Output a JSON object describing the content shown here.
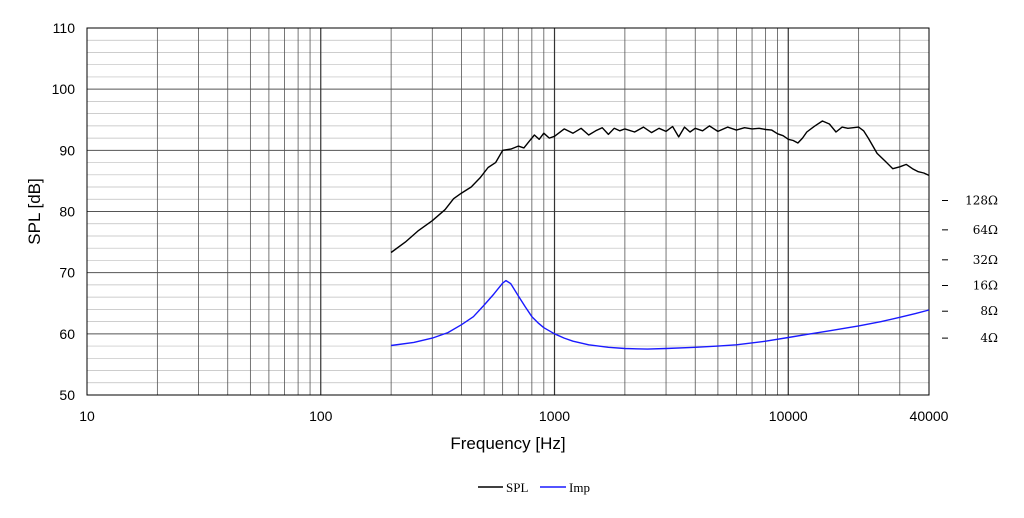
{
  "chart_data": {
    "type": "line",
    "title": "",
    "xlabel": "Frequency [Hz]",
    "ylabel": "SPL [dB]",
    "x_scale": "log",
    "xlim": [
      10,
      40000
    ],
    "ylim": [
      50,
      110
    ],
    "grid": true,
    "x_ticks": [
      {
        "value": 10,
        "label": "10"
      },
      {
        "value": 100,
        "label": "100"
      },
      {
        "value": 1000,
        "label": "1000"
      },
      {
        "value": 10000,
        "label": "10000"
      },
      {
        "value": 40000,
        "label": "40000"
      }
    ],
    "y_ticks": [
      {
        "value": 50,
        "label": "50"
      },
      {
        "value": 60,
        "label": "60"
      },
      {
        "value": 70,
        "label": "70"
      },
      {
        "value": 80,
        "label": "80"
      },
      {
        "value": 90,
        "label": "90"
      },
      {
        "value": 100,
        "label": "100"
      },
      {
        "value": 110,
        "label": "110"
      }
    ],
    "impedance_axis": [
      {
        "label": "128Ω",
        "y": 81.8
      },
      {
        "label": "64Ω",
        "y": 77.0
      },
      {
        "label": "32Ω",
        "y": 72.1
      },
      {
        "label": "16Ω",
        "y": 67.9
      },
      {
        "label": "8Ω",
        "y": 63.7
      },
      {
        "label": "4Ω",
        "y": 59.3
      }
    ],
    "legend_position": "bottom-center",
    "series": [
      {
        "name": "SPL",
        "color": "#000000",
        "points": [
          [
            200,
            73.3
          ],
          [
            230,
            75.0
          ],
          [
            260,
            76.8
          ],
          [
            300,
            78.5
          ],
          [
            340,
            80.3
          ],
          [
            370,
            82.1
          ],
          [
            400,
            83.0
          ],
          [
            440,
            84.0
          ],
          [
            480,
            85.5
          ],
          [
            520,
            87.2
          ],
          [
            560,
            88.0
          ],
          [
            600,
            90.0
          ],
          [
            650,
            90.2
          ],
          [
            700,
            90.7
          ],
          [
            740,
            90.4
          ],
          [
            780,
            91.5
          ],
          [
            820,
            92.5
          ],
          [
            860,
            91.8
          ],
          [
            900,
            92.8
          ],
          [
            950,
            92.0
          ],
          [
            1000,
            92.3
          ],
          [
            1100,
            93.5
          ],
          [
            1200,
            92.8
          ],
          [
            1300,
            93.6
          ],
          [
            1400,
            92.5
          ],
          [
            1500,
            93.2
          ],
          [
            1600,
            93.7
          ],
          [
            1700,
            92.6
          ],
          [
            1800,
            93.6
          ],
          [
            1900,
            93.2
          ],
          [
            2000,
            93.5
          ],
          [
            2200,
            93.0
          ],
          [
            2400,
            93.8
          ],
          [
            2600,
            92.9
          ],
          [
            2800,
            93.6
          ],
          [
            3000,
            93.1
          ],
          [
            3200,
            93.9
          ],
          [
            3400,
            92.2
          ],
          [
            3600,
            93.8
          ],
          [
            3800,
            93.0
          ],
          [
            4000,
            93.6
          ],
          [
            4300,
            93.2
          ],
          [
            4600,
            94.0
          ],
          [
            5000,
            93.1
          ],
          [
            5500,
            93.8
          ],
          [
            6000,
            93.3
          ],
          [
            6500,
            93.7
          ],
          [
            7000,
            93.5
          ],
          [
            7500,
            93.6
          ],
          [
            8000,
            93.4
          ],
          [
            8500,
            93.3
          ],
          [
            9000,
            92.7
          ],
          [
            9500,
            92.4
          ],
          [
            10000,
            91.8
          ],
          [
            10500,
            91.6
          ],
          [
            11000,
            91.2
          ],
          [
            11500,
            92.0
          ],
          [
            12000,
            93.0
          ],
          [
            13000,
            94.0
          ],
          [
            14000,
            94.8
          ],
          [
            15000,
            94.3
          ],
          [
            16000,
            93.0
          ],
          [
            17000,
            93.8
          ],
          [
            18000,
            93.6
          ],
          [
            20000,
            93.8
          ],
          [
            21000,
            93.2
          ],
          [
            22000,
            92.0
          ],
          [
            24000,
            89.5
          ],
          [
            26000,
            88.2
          ],
          [
            28000,
            87.0
          ],
          [
            30000,
            87.3
          ],
          [
            32000,
            87.7
          ],
          [
            34000,
            87.0
          ],
          [
            36000,
            86.5
          ],
          [
            38000,
            86.3
          ],
          [
            40000,
            85.9
          ]
        ]
      },
      {
        "name": "Imp",
        "color": "#1a1aff",
        "points": [
          [
            200,
            58.1
          ],
          [
            250,
            58.6
          ],
          [
            300,
            59.3
          ],
          [
            350,
            60.2
          ],
          [
            400,
            61.5
          ],
          [
            450,
            62.8
          ],
          [
            500,
            64.7
          ],
          [
            550,
            66.5
          ],
          [
            600,
            68.3
          ],
          [
            620,
            68.7
          ],
          [
            650,
            68.2
          ],
          [
            700,
            66.2
          ],
          [
            750,
            64.4
          ],
          [
            800,
            62.8
          ],
          [
            850,
            61.8
          ],
          [
            900,
            61.0
          ],
          [
            1000,
            60.0
          ],
          [
            1100,
            59.3
          ],
          [
            1200,
            58.8
          ],
          [
            1400,
            58.2
          ],
          [
            1700,
            57.8
          ],
          [
            2000,
            57.6
          ],
          [
            2500,
            57.5
          ],
          [
            3000,
            57.6
          ],
          [
            4000,
            57.8
          ],
          [
            5000,
            58.0
          ],
          [
            6000,
            58.2
          ],
          [
            8000,
            58.8
          ],
          [
            10000,
            59.4
          ],
          [
            12000,
            59.9
          ],
          [
            15000,
            60.5
          ],
          [
            20000,
            61.3
          ],
          [
            25000,
            62.0
          ],
          [
            30000,
            62.7
          ],
          [
            35000,
            63.3
          ],
          [
            40000,
            63.9
          ]
        ]
      }
    ]
  }
}
